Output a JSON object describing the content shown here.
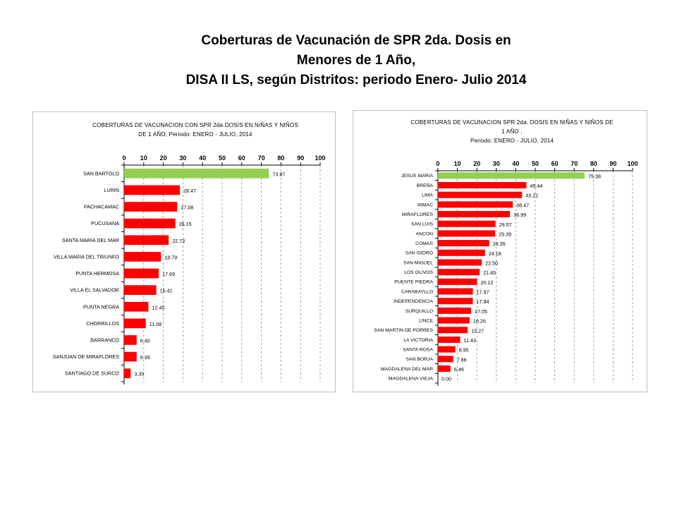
{
  "page": {
    "title_lines": [
      "Coberturas de Vacunación de  SPR 2da. Dosis en",
      "Menores de 1 Año,",
      "DISA II LS, según Distritos: periodo Enero- Julio 2014"
    ]
  },
  "chart_data": [
    {
      "type": "bar",
      "orientation": "horizontal",
      "title_lines": [
        "COBERTURAS DE VACUNACION CON SPR 2da DOSIS  EN NIÑAS Y NIÑOS",
        "DE 1 AÑO, Periodo:  ENERO - JULIO, 2014"
      ],
      "xlim": [
        0,
        100
      ],
      "ticks": [
        "0",
        "10",
        "20",
        "30",
        "40",
        "50",
        "60",
        "70",
        "80",
        "90",
        "100"
      ],
      "tick_values": [
        0,
        10,
        20,
        30,
        40,
        50,
        60,
        70,
        80,
        90,
        100
      ],
      "grid": true,
      "highlight_color": "#92d050",
      "bar_color": "#ff0000",
      "categories": [
        "SAN BARTOLO",
        "LURIN",
        "PACHACAMAC",
        "PUCUSANA",
        "SANTA MARIA DEL MAR",
        "VILLA MARIA DEL TRIUNFO",
        "PUNTA HERMOSA",
        "VILLA EL SALVADOR",
        "PUNTA NEGRA",
        "CHORRILLOS",
        "BARRANCO",
        "SANJUAN DE MIRAFLORES",
        "SANTIAGO DE SURCO"
      ],
      "values": [
        73.87,
        28.47,
        27.08,
        26.15,
        22.73,
        18.79,
        17.69,
        16.41,
        12.4,
        11.08,
        6.4,
        6.39,
        3.35
      ],
      "value_labels": [
        "73.87",
        "28.47",
        "27.08",
        "26.15",
        "22.73",
        "18.79",
        "17.69",
        "16.41",
        "12.40",
        "11.08",
        "6.40",
        "6.39",
        "3.35"
      ]
    },
    {
      "type": "bar",
      "orientation": "horizontal",
      "title_lines": [
        "COBERTURAS DE VACUNACION SPR 2da. DOSIS  EN NIÑAS Y NIÑOS DE",
        "1 AÑO ,",
        "Periodo:  ENERO - JULIO, 2014"
      ],
      "xlim": [
        0,
        100
      ],
      "ticks": [
        "0",
        "10",
        "20",
        "30",
        "40",
        "50",
        "60",
        "70",
        "80",
        "90",
        "100"
      ],
      "tick_values": [
        0,
        10,
        20,
        30,
        40,
        50,
        60,
        70,
        80,
        90,
        100
      ],
      "grid": true,
      "highlight_color": "#92d050",
      "bar_color": "#ff0000",
      "categories": [
        "JESUS MARIA",
        "BREÑA",
        "LIMA",
        "RIMAC",
        "MIRAFLORES",
        "SAN LUIS",
        "ANCON",
        "COMAS",
        "SAN ISIDRO",
        "SAN MIGUEL",
        "LOS OLIVOS",
        "PUENTE PIEDRA",
        "CARABAYLLO",
        "INDEPENDENCIA",
        "SURQUILLO",
        "LINCE",
        "SAN MARTIN DE PORRES",
        "LA VICTORIA",
        "SANTA ROSA",
        "SAN BORJA",
        "MAGDALENA DEL MAR",
        "MAGDALENA VIEJA"
      ],
      "values": [
        75.38,
        45.44,
        43.21,
        38.47,
        36.99,
        29.57,
        29.39,
        26.35,
        24.18,
        22.5,
        21.45,
        20.12,
        17.97,
        17.94,
        17.05,
        16.26,
        15.27,
        11.43,
        8.95,
        7.86,
        6.46,
        0.0
      ],
      "value_labels": [
        "75.38",
        "45.44",
        "43.21",
        "38.47",
        "36.99",
        "29.57",
        "29.39",
        "26.35",
        "24.18",
        "22.50",
        "21.45",
        "20.12",
        "17.97",
        "17.94",
        "17.05",
        "16.26",
        "15.27",
        "11.43",
        "8.95",
        "7.86",
        "6.46",
        "0.00"
      ]
    }
  ]
}
